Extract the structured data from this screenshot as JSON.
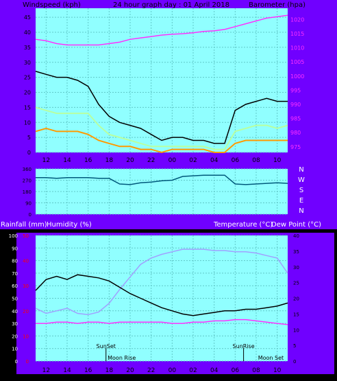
{
  "colors": {
    "frame": "#7000ff",
    "plot_bg": "#90ffff",
    "grid": "#60c8c8",
    "wind_gust": "#000000",
    "wind_avg": "#b8ffa0",
    "wind_min": "#ff9a00",
    "barometer": "#ff30ff",
    "direction": "#00587a",
    "temperature": "#a0a0ff",
    "dewpoint": "#000000",
    "humidity_line": "#ff30ff",
    "rain_axis_text": "#ff0000"
  },
  "header": {
    "left": "Windspeed (kph)",
    "center": "24 hour graph day : 01 April 2018",
    "right": "Barometer (hpa)"
  },
  "middle_header": {
    "left_1": "Rainfall (mm)",
    "left_2": "Humidity (%)",
    "right_1": "Temperature (°C)",
    "right_2": "Dew Point (°C)"
  },
  "compass": [
    "N",
    "W",
    "S",
    "E",
    "N"
  ],
  "annotations": {
    "sunset": "SunSet",
    "sunrise": "SunRise",
    "moonrise": "Moon Rise",
    "moonset": "Moon Set"
  },
  "chart_data": [
    {
      "type": "line",
      "name_hint": "wind-barometer",
      "x_ticks": [
        "12",
        "14",
        "16",
        "18",
        "20",
        "22",
        "00",
        "02",
        "04",
        "06",
        "08",
        "10"
      ],
      "y_left_ticks": [
        "0",
        "5",
        "10",
        "15",
        "20",
        "25",
        "30",
        "35",
        "40",
        "45"
      ],
      "y_left_range": [
        0,
        48
      ],
      "y_right_ticks": [
        "975",
        "980",
        "985",
        "990",
        "995",
        "1000",
        "1005",
        "1010",
        "1015",
        "1020"
      ],
      "y_right_range": [
        973,
        1024
      ],
      "x_hours": [
        11,
        12,
        13,
        14,
        15,
        16,
        17,
        18,
        19,
        20,
        21,
        22,
        23,
        24,
        25,
        26,
        27,
        28,
        29,
        30,
        31,
        32,
        33,
        34,
        35
      ],
      "gust": [
        27,
        26,
        25,
        25,
        24,
        22,
        16,
        12,
        10,
        9,
        8,
        6,
        4,
        5,
        5,
        4,
        4,
        3,
        3,
        14,
        16,
        17,
        18,
        17,
        17
      ],
      "avg": [
        15,
        14,
        13,
        13,
        13,
        13,
        9,
        6,
        5,
        4,
        3,
        2,
        2,
        2,
        2,
        2,
        2,
        1,
        1,
        7,
        8,
        9,
        9,
        8,
        9
      ],
      "min": [
        7,
        8,
        7,
        7,
        7,
        6,
        4,
        3,
        2,
        2,
        1,
        1,
        0,
        1,
        1,
        1,
        1,
        0,
        0,
        3,
        4,
        4,
        4,
        4,
        4
      ],
      "barometer": [
        1013,
        1012.5,
        1011.5,
        1011,
        1011,
        1011,
        1011,
        1011.5,
        1012,
        1013,
        1013.5,
        1014,
        1014.5,
        1014.8,
        1015,
        1015.3,
        1015.8,
        1016,
        1016.5,
        1017.5,
        1018.5,
        1019.5,
        1020.5,
        1021,
        1021.5
      ]
    },
    {
      "type": "line",
      "name_hint": "wind-direction",
      "y_left_ticks": [
        "0",
        "90",
        "180",
        "270",
        "360"
      ],
      "y_range": [
        0,
        360
      ],
      "x_hours": [
        11,
        12,
        13,
        14,
        15,
        16,
        17,
        18,
        19,
        20,
        21,
        22,
        23,
        24,
        25,
        26,
        27,
        28,
        29,
        30,
        31,
        32,
        33,
        34,
        35
      ],
      "direction": [
        290,
        290,
        285,
        290,
        290,
        290,
        285,
        285,
        240,
        235,
        250,
        255,
        265,
        270,
        300,
        305,
        310,
        310,
        310,
        240,
        235,
        240,
        245,
        250,
        245
      ]
    },
    {
      "type": "line",
      "name_hint": "temp-humidity",
      "y_left_ticks": [
        "0",
        "10",
        "20",
        "30",
        "40",
        "50",
        "60",
        "70",
        "80",
        "90",
        "100"
      ],
      "y_left_range": [
        0,
        100
      ],
      "y_rain_ticks": [
        "0",
        "10",
        "20",
        "30",
        "40",
        "50"
      ],
      "y_right_ticks": [
        "0",
        "5",
        "10",
        "15",
        "20",
        "25",
        "30",
        "35",
        "40"
      ],
      "y_right_range": [
        0,
        40
      ],
      "x_hours": [
        11,
        12,
        13,
        14,
        15,
        16,
        17,
        18,
        19,
        20,
        21,
        22,
        23,
        24,
        25,
        26,
        27,
        28,
        29,
        30,
        31,
        32,
        33,
        34,
        35
      ],
      "temperature": [
        22.5,
        26,
        27,
        26,
        27.5,
        27,
        26.5,
        25.5,
        23.5,
        21.5,
        20,
        18.5,
        17,
        16,
        15,
        14.5,
        15,
        15.5,
        16,
        16,
        16.5,
        16.5,
        17,
        17.5,
        18.5
      ],
      "humidity": [
        42,
        38,
        40,
        42,
        38,
        37,
        39,
        46,
        57,
        67,
        77,
        82,
        85,
        87,
        89,
        89,
        89,
        88,
        88,
        87,
        87,
        86,
        84,
        82,
        70
      ],
      "humidity_line": [
        30,
        30,
        31,
        31,
        30,
        31,
        31,
        30,
        31,
        31,
        31,
        31,
        31,
        30,
        30,
        31,
        31,
        32,
        32,
        33,
        33,
        32,
        31,
        30,
        29
      ]
    }
  ]
}
